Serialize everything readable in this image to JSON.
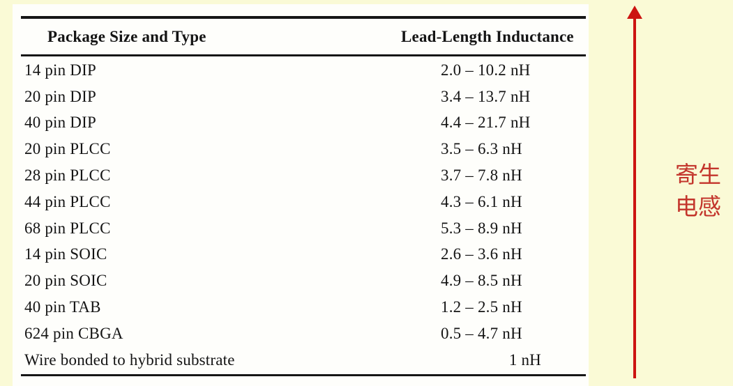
{
  "colors": {
    "slide_background": "#fafad6",
    "panel_background": "#fefefb",
    "table_text": "#141414",
    "arrow_red": "#cc1411",
    "annotation_red": "#c3352c"
  },
  "table": {
    "col1_header": "Package Size and Type",
    "col2_header": "Lead-Length Inductance",
    "rows": [
      {
        "package": "14 pin DIP",
        "inductance": "2.0 – 10.2 nH"
      },
      {
        "package": "20 pin DIP",
        "inductance": "3.4 – 13.7 nH"
      },
      {
        "package": "40 pin DIP",
        "inductance": "4.4 – 21.7 nH"
      },
      {
        "package": "20 pin PLCC",
        "inductance": "3.5 – 6.3 nH"
      },
      {
        "package": "28 pin PLCC",
        "inductance": "3.7 – 7.8 nH"
      },
      {
        "package": "44 pin PLCC",
        "inductance": "4.3 – 6.1 nH"
      },
      {
        "package": "68 pin PLCC",
        "inductance": "5.3 – 8.9 nH"
      },
      {
        "package": "14 pin SOIC",
        "inductance": "2.6 – 3.6 nH"
      },
      {
        "package": "20 pin SOIC",
        "inductance": "4.9 – 8.5 nH"
      },
      {
        "package": "40 pin TAB",
        "inductance": "1.2 – 2.5 nH"
      },
      {
        "package": "624 pin CBGA",
        "inductance": "0.5 – 4.7 nH"
      },
      {
        "package": "Wire bonded to hybrid substrate",
        "inductance": "1 nH"
      }
    ]
  },
  "annotation": {
    "line1": "寄生",
    "line2": "电感"
  },
  "chart_data": {
    "type": "table",
    "title": "",
    "columns": [
      "Package Size and Type",
      "Lead-Length Inductance"
    ],
    "rows": [
      [
        "14 pin DIP",
        "2.0 – 10.2 nH"
      ],
      [
        "20 pin DIP",
        "3.4 – 13.7 nH"
      ],
      [
        "40 pin DIP",
        "4.4 – 21.7 nH"
      ],
      [
        "20 pin PLCC",
        "3.5 – 6.3 nH"
      ],
      [
        "28 pin PLCC",
        "3.7 – 7.8 nH"
      ],
      [
        "44 pin PLCC",
        "4.3 – 6.1 nH"
      ],
      [
        "68 pin PLCC",
        "5.3 – 8.9 nH"
      ],
      [
        "14 pin SOIC",
        "2.6 – 3.6 nH"
      ],
      [
        "20 pin SOIC",
        "4.9 – 8.5 nH"
      ],
      [
        "40 pin TAB",
        "1.2 – 2.5 nH"
      ],
      [
        "624 pin CBGA",
        "0.5 – 4.7 nH"
      ],
      [
        "Wire bonded to hybrid substrate",
        "1 nH"
      ]
    ]
  }
}
